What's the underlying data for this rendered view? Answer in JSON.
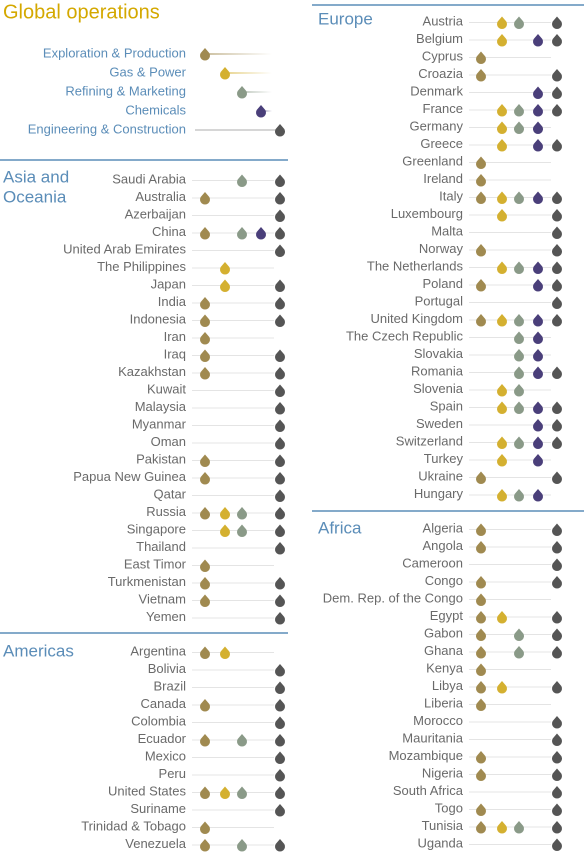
{
  "title": "Global operations",
  "segments": [
    {
      "name": "Exploration & Production",
      "color": "#a08a50"
    },
    {
      "name": "Gas & Power",
      "color": "#d4b030"
    },
    {
      "name": "Refining & Marketing",
      "color": "#8a9a88"
    },
    {
      "name": "Chemicals",
      "color": "#4a3f7a"
    },
    {
      "name": "Engineering & Construction",
      "color": "#555555"
    }
  ],
  "regions": [
    {
      "label": [
        "Asia and",
        "Oceania"
      ],
      "countries": [
        {
          "name": "Saudi Arabia",
          "has": [
            false,
            false,
            true,
            false,
            true
          ]
        },
        {
          "name": "Australia",
          "has": [
            true,
            false,
            false,
            false,
            true
          ]
        },
        {
          "name": "Azerbaijan",
          "has": [
            false,
            false,
            false,
            false,
            true
          ]
        },
        {
          "name": "China",
          "has": [
            true,
            false,
            true,
            true,
            true
          ]
        },
        {
          "name": "United Arab Emirates",
          "has": [
            false,
            false,
            false,
            false,
            true
          ]
        },
        {
          "name": "The Philippines",
          "has": [
            false,
            true,
            false,
            false,
            false
          ]
        },
        {
          "name": "Japan",
          "has": [
            false,
            true,
            false,
            false,
            true
          ]
        },
        {
          "name": "India",
          "has": [
            true,
            false,
            false,
            false,
            true
          ]
        },
        {
          "name": "Indonesia",
          "has": [
            true,
            false,
            false,
            false,
            true
          ]
        },
        {
          "name": "Iran",
          "has": [
            true,
            false,
            false,
            false,
            false
          ]
        },
        {
          "name": "Iraq",
          "has": [
            true,
            false,
            false,
            false,
            true
          ]
        },
        {
          "name": "Kazakhstan",
          "has": [
            true,
            false,
            false,
            false,
            true
          ]
        },
        {
          "name": "Kuwait",
          "has": [
            false,
            false,
            false,
            false,
            true
          ]
        },
        {
          "name": "Malaysia",
          "has": [
            false,
            false,
            false,
            false,
            true
          ]
        },
        {
          "name": "Myanmar",
          "has": [
            false,
            false,
            false,
            false,
            true
          ]
        },
        {
          "name": "Oman",
          "has": [
            false,
            false,
            false,
            false,
            true
          ]
        },
        {
          "name": "Pakistan",
          "has": [
            true,
            false,
            false,
            false,
            true
          ]
        },
        {
          "name": "Papua New Guinea",
          "has": [
            true,
            false,
            false,
            false,
            true
          ]
        },
        {
          "name": "Qatar",
          "has": [
            false,
            false,
            false,
            false,
            true
          ]
        },
        {
          "name": "Russia",
          "has": [
            true,
            true,
            true,
            false,
            true
          ]
        },
        {
          "name": "Singapore",
          "has": [
            false,
            true,
            true,
            false,
            true
          ]
        },
        {
          "name": "Thailand",
          "has": [
            false,
            false,
            false,
            false,
            true
          ]
        },
        {
          "name": "East Timor",
          "has": [
            true,
            false,
            false,
            false,
            false
          ]
        },
        {
          "name": "Turkmenistan",
          "has": [
            true,
            false,
            false,
            false,
            true
          ]
        },
        {
          "name": "Vietnam",
          "has": [
            true,
            false,
            false,
            false,
            true
          ]
        },
        {
          "name": "Yemen",
          "has": [
            false,
            false,
            false,
            false,
            true
          ]
        }
      ]
    },
    {
      "label": [
        "Americas"
      ],
      "countries": [
        {
          "name": "Argentina",
          "has": [
            true,
            true,
            false,
            false,
            false
          ]
        },
        {
          "name": "Bolivia",
          "has": [
            false,
            false,
            false,
            false,
            true
          ]
        },
        {
          "name": "Brazil",
          "has": [
            false,
            false,
            false,
            false,
            true
          ]
        },
        {
          "name": "Canada",
          "has": [
            true,
            false,
            false,
            false,
            true
          ]
        },
        {
          "name": "Colombia",
          "has": [
            false,
            false,
            false,
            false,
            true
          ]
        },
        {
          "name": "Ecuador",
          "has": [
            true,
            false,
            true,
            false,
            true
          ]
        },
        {
          "name": "Mexico",
          "has": [
            false,
            false,
            false,
            false,
            true
          ]
        },
        {
          "name": "Peru",
          "has": [
            false,
            false,
            false,
            false,
            true
          ]
        },
        {
          "name": "United States",
          "has": [
            true,
            true,
            true,
            false,
            true
          ]
        },
        {
          "name": "Suriname",
          "has": [
            false,
            false,
            false,
            false,
            true
          ]
        },
        {
          "name": "Trinidad & Tobago",
          "has": [
            true,
            false,
            false,
            false,
            false
          ]
        },
        {
          "name": "Venezuela",
          "has": [
            true,
            false,
            true,
            false,
            true
          ]
        }
      ]
    },
    {
      "label": [
        "Europe"
      ],
      "countries": [
        {
          "name": "Austria",
          "has": [
            false,
            true,
            true,
            false,
            true
          ]
        },
        {
          "name": "Belgium",
          "has": [
            false,
            true,
            false,
            true,
            true
          ]
        },
        {
          "name": "Cyprus",
          "has": [
            true,
            false,
            false,
            false,
            false
          ]
        },
        {
          "name": "Croazia",
          "has": [
            true,
            false,
            false,
            false,
            true
          ]
        },
        {
          "name": "Denmark",
          "has": [
            false,
            false,
            false,
            true,
            true
          ]
        },
        {
          "name": "France",
          "has": [
            false,
            true,
            true,
            true,
            true
          ]
        },
        {
          "name": "Germany",
          "has": [
            false,
            true,
            true,
            true,
            false
          ]
        },
        {
          "name": "Greece",
          "has": [
            false,
            true,
            false,
            true,
            true
          ]
        },
        {
          "name": "Greenland",
          "has": [
            true,
            false,
            false,
            false,
            false
          ]
        },
        {
          "name": "Ireland",
          "has": [
            true,
            false,
            false,
            false,
            false
          ]
        },
        {
          "name": "Italy",
          "has": [
            true,
            true,
            true,
            true,
            true
          ]
        },
        {
          "name": "Luxembourg",
          "has": [
            false,
            true,
            false,
            false,
            true
          ]
        },
        {
          "name": "Malta",
          "has": [
            false,
            false,
            false,
            false,
            true
          ]
        },
        {
          "name": "Norway",
          "has": [
            true,
            false,
            false,
            false,
            true
          ]
        },
        {
          "name": "The Netherlands",
          "has": [
            false,
            true,
            true,
            true,
            true
          ]
        },
        {
          "name": "Poland",
          "has": [
            true,
            false,
            false,
            true,
            true
          ]
        },
        {
          "name": "Portugal",
          "has": [
            false,
            false,
            false,
            false,
            true
          ]
        },
        {
          "name": "United Kingdom",
          "has": [
            true,
            true,
            true,
            true,
            true
          ]
        },
        {
          "name": "The Czech Republic",
          "has": [
            false,
            false,
            true,
            true,
            false
          ]
        },
        {
          "name": "Slovakia",
          "has": [
            false,
            false,
            true,
            true,
            false
          ]
        },
        {
          "name": "Romania",
          "has": [
            false,
            false,
            true,
            true,
            true
          ]
        },
        {
          "name": "Slovenia",
          "has": [
            false,
            true,
            true,
            false,
            false
          ]
        },
        {
          "name": "Spain",
          "has": [
            false,
            true,
            true,
            true,
            true
          ]
        },
        {
          "name": "Sweden",
          "has": [
            false,
            false,
            false,
            true,
            true
          ]
        },
        {
          "name": "Switzerland",
          "has": [
            false,
            true,
            true,
            true,
            true
          ]
        },
        {
          "name": "Turkey",
          "has": [
            false,
            true,
            false,
            true,
            false
          ]
        },
        {
          "name": "Ukraine",
          "has": [
            true,
            false,
            false,
            false,
            true
          ]
        },
        {
          "name": "Hungary",
          "has": [
            false,
            true,
            true,
            true,
            false
          ]
        }
      ]
    },
    {
      "label": [
        "Africa"
      ],
      "countries": [
        {
          "name": "Algeria",
          "has": [
            true,
            false,
            false,
            false,
            true
          ]
        },
        {
          "name": "Angola",
          "has": [
            true,
            false,
            false,
            false,
            true
          ]
        },
        {
          "name": "Cameroon",
          "has": [
            false,
            false,
            false,
            false,
            true
          ]
        },
        {
          "name": "Congo",
          "has": [
            true,
            false,
            false,
            false,
            true
          ]
        },
        {
          "name": "Dem. Rep. of the Congo",
          "has": [
            true,
            false,
            false,
            false,
            false
          ]
        },
        {
          "name": "Egypt",
          "has": [
            true,
            true,
            false,
            false,
            true
          ]
        },
        {
          "name": "Gabon",
          "has": [
            true,
            false,
            true,
            false,
            true
          ]
        },
        {
          "name": "Ghana",
          "has": [
            true,
            false,
            true,
            false,
            true
          ]
        },
        {
          "name": "Kenya",
          "has": [
            true,
            false,
            false,
            false,
            false
          ]
        },
        {
          "name": "Libya",
          "has": [
            true,
            true,
            false,
            false,
            true
          ]
        },
        {
          "name": "Liberia",
          "has": [
            true,
            false,
            false,
            false,
            false
          ]
        },
        {
          "name": "Morocco",
          "has": [
            false,
            false,
            false,
            false,
            true
          ]
        },
        {
          "name": "Mauritania",
          "has": [
            false,
            false,
            false,
            false,
            true
          ]
        },
        {
          "name": "Mozambique",
          "has": [
            true,
            false,
            false,
            false,
            true
          ]
        },
        {
          "name": "Nigeria",
          "has": [
            true,
            false,
            false,
            false,
            true
          ]
        },
        {
          "name": "South Africa",
          "has": [
            false,
            false,
            false,
            false,
            true
          ]
        },
        {
          "name": "Togo",
          "has": [
            true,
            false,
            false,
            false,
            true
          ]
        },
        {
          "name": "Tunisia",
          "has": [
            true,
            true,
            true,
            false,
            true
          ]
        },
        {
          "name": "Uganda",
          "has": [
            false,
            false,
            false,
            false,
            true
          ]
        }
      ]
    }
  ]
}
